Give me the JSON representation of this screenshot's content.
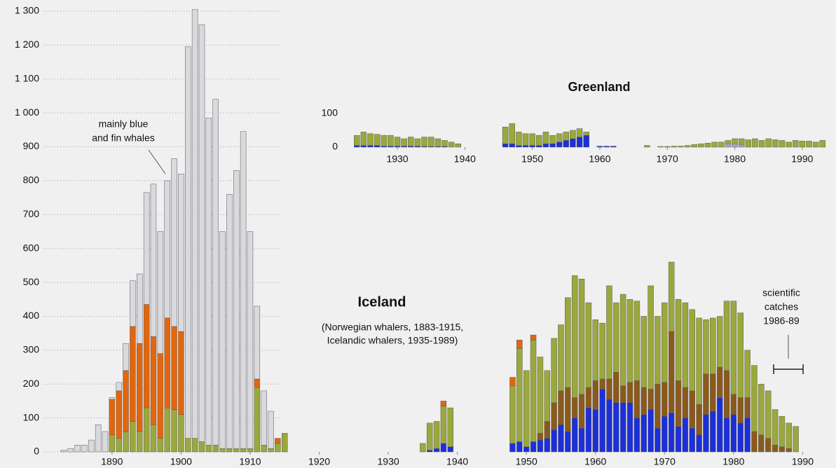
{
  "chart_data": [
    {
      "type": "bar",
      "stacked": true,
      "title": "Iceland",
      "annotations": [
        {
          "lines": [
            "mainly blue",
            "and fin whales"
          ]
        },
        {
          "lines": [
            "(Norwegian whalers, 1883-1915,",
            "Icelandic whalers, 1935-1989)"
          ]
        },
        {
          "lines": [
            "scientific",
            "catches",
            "1986-89"
          ]
        }
      ],
      "xlim": [
        1882,
        1993
      ],
      "xticks": [
        1890,
        1900,
        1910,
        1920,
        1930,
        1940,
        1950,
        1960,
        1970,
        1980,
        1990
      ],
      "ylim": [
        0,
        1300
      ],
      "yticks": [
        0,
        100,
        200,
        300,
        400,
        500,
        600,
        700,
        800,
        900,
        {
          "value": 1000,
          "label": "1 000"
        },
        {
          "value": 1100,
          "label": "1 100"
        },
        {
          "value": 1200,
          "label": "1 200"
        },
        {
          "value": 1300,
          "label": "1 300"
        }
      ],
      "grid": true,
      "x": [
        1883,
        1884,
        1885,
        1886,
        1887,
        1888,
        1889,
        1890,
        1891,
        1892,
        1893,
        1894,
        1895,
        1896,
        1897,
        1898,
        1899,
        1900,
        1901,
        1902,
        1903,
        1904,
        1905,
        1906,
        1907,
        1908,
        1909,
        1910,
        1911,
        1912,
        1913,
        1914,
        1915,
        1935,
        1936,
        1937,
        1938,
        1939,
        1948,
        1949,
        1950,
        1951,
        1952,
        1953,
        1954,
        1955,
        1956,
        1957,
        1958,
        1959,
        1960,
        1961,
        1962,
        1963,
        1964,
        1965,
        1966,
        1967,
        1968,
        1969,
        1970,
        1971,
        1972,
        1973,
        1974,
        1975,
        1976,
        1977,
        1978,
        1979,
        1980,
        1981,
        1982,
        1983,
        1984,
        1985,
        1986,
        1987,
        1988,
        1989
      ],
      "series": [
        {
          "color": "#1c2fd8",
          "values": [
            0,
            0,
            0,
            0,
            0,
            0,
            0,
            0,
            0,
            0,
            0,
            0,
            0,
            0,
            0,
            0,
            0,
            0,
            0,
            0,
            0,
            0,
            0,
            0,
            0,
            0,
            0,
            0,
            0,
            0,
            0,
            0,
            0,
            0,
            5,
            10,
            25,
            15,
            25,
            30,
            15,
            30,
            35,
            40,
            65,
            80,
            60,
            100,
            70,
            130,
            125,
            185,
            155,
            145,
            145,
            145,
            100,
            110,
            125,
            70,
            105,
            115,
            75,
            100,
            70,
            50,
            110,
            120,
            160,
            100,
            110,
            85,
            100,
            0,
            0,
            0,
            0,
            0,
            0,
            0
          ]
        },
        {
          "color": "#8a5a1c",
          "values": [
            0,
            0,
            0,
            0,
            0,
            0,
            0,
            0,
            0,
            0,
            0,
            0,
            0,
            0,
            0,
            0,
            0,
            0,
            0,
            0,
            0,
            0,
            0,
            0,
            0,
            0,
            0,
            0,
            0,
            0,
            0,
            0,
            0,
            0,
            0,
            0,
            0,
            0,
            0,
            0,
            0,
            0,
            20,
            50,
            80,
            100,
            130,
            60,
            100,
            60,
            85,
            30,
            60,
            90,
            50,
            60,
            110,
            80,
            60,
            130,
            100,
            240,
            135,
            90,
            110,
            90,
            120,
            110,
            90,
            140,
            60,
            75,
            60,
            60,
            50,
            40,
            20,
            15,
            10,
            0
          ]
        },
        {
          "color": "#9aa83c",
          "values": [
            0,
            0,
            0,
            0,
            0,
            0,
            0,
            50,
            40,
            60,
            90,
            60,
            130,
            80,
            40,
            130,
            125,
            110,
            40,
            40,
            30,
            20,
            20,
            10,
            10,
            10,
            10,
            10,
            190,
            20,
            10,
            25,
            55,
            25,
            80,
            80,
            110,
            115,
            170,
            275,
            225,
            300,
            225,
            150,
            190,
            195,
            265,
            360,
            340,
            250,
            180,
            165,
            275,
            205,
            270,
            245,
            235,
            210,
            305,
            200,
            235,
            205,
            240,
            250,
            240,
            255,
            160,
            165,
            150,
            205,
            275,
            250,
            140,
            195,
            150,
            140,
            105,
            90,
            75,
            75
          ]
        },
        {
          "color": "#e2660e",
          "values": [
            0,
            0,
            0,
            0,
            0,
            0,
            0,
            105,
            140,
            180,
            280,
            260,
            305,
            260,
            250,
            265,
            245,
            245,
            0,
            0,
            0,
            0,
            0,
            0,
            0,
            0,
            0,
            0,
            25,
            0,
            0,
            15,
            0,
            0,
            0,
            0,
            15,
            0,
            25,
            25,
            0,
            15,
            0,
            0,
            0,
            0,
            0,
            0,
            0,
            0,
            0,
            0,
            0,
            0,
            0,
            0,
            0,
            0,
            0,
            0,
            0,
            0,
            0,
            0,
            0,
            0,
            0,
            0,
            0,
            0,
            0,
            0,
            0,
            0,
            0,
            0,
            0,
            0,
            0,
            0
          ]
        },
        {
          "color": "#d9d9de",
          "values": [
            5,
            10,
            20,
            20,
            35,
            80,
            60,
            5,
            25,
            80,
            135,
            205,
            330,
            450,
            360,
            405,
            495,
            465,
            1155,
            1265,
            1230,
            965,
            1020,
            640,
            750,
            820,
            935,
            640,
            215,
            160,
            110,
            0,
            0,
            0,
            0,
            0,
            0,
            0,
            0,
            0,
            0,
            0,
            0,
            0,
            0,
            0,
            0,
            0,
            0,
            0,
            0,
            0,
            0,
            0,
            0,
            0,
            0,
            0,
            0,
            0,
            0,
            0,
            0,
            0,
            0,
            0,
            0,
            0,
            0,
            0,
            0,
            0,
            0,
            0,
            0,
            0,
            0,
            0,
            0,
            0
          ]
        }
      ]
    },
    {
      "type": "bar",
      "stacked": true,
      "title": "Greenland",
      "xlim": [
        1922,
        1995
      ],
      "xticks": [
        1930,
        1940,
        1950,
        1960,
        1970,
        1980,
        1990
      ],
      "ylim": [
        0,
        100
      ],
      "yticks": [
        0,
        100
      ],
      "x": [
        1924,
        1925,
        1926,
        1927,
        1928,
        1929,
        1930,
        1931,
        1932,
        1933,
        1934,
        1935,
        1936,
        1937,
        1938,
        1939,
        1946,
        1947,
        1948,
        1949,
        1950,
        1951,
        1952,
        1953,
        1954,
        1955,
        1956,
        1957,
        1958,
        1960,
        1961,
        1962,
        1967,
        1969,
        1970,
        1971,
        1972,
        1973,
        1974,
        1975,
        1976,
        1977,
        1978,
        1979,
        1980,
        1981,
        1982,
        1983,
        1984,
        1985,
        1986,
        1987,
        1988,
        1989,
        1990,
        1991,
        1992,
        1993
      ],
      "series": [
        {
          "color": "#1c2fd8",
          "values": [
            5,
            5,
            5,
            5,
            3,
            3,
            3,
            3,
            3,
            3,
            2,
            2,
            2,
            2,
            0,
            0,
            10,
            10,
            5,
            5,
            5,
            5,
            10,
            10,
            15,
            20,
            25,
            30,
            35,
            3,
            3,
            3,
            0,
            0,
            0,
            0,
            0,
            0,
            0,
            0,
            0,
            0,
            0,
            0,
            0,
            0,
            0,
            0,
            0,
            0,
            0,
            0,
            0,
            0,
            0,
            0,
            0,
            0
          ]
        },
        {
          "color": "#a8a8b4",
          "values": [
            0,
            0,
            0,
            0,
            0,
            0,
            0,
            0,
            0,
            0,
            0,
            0,
            0,
            0,
            0,
            0,
            0,
            0,
            0,
            0,
            0,
            0,
            0,
            0,
            0,
            0,
            0,
            0,
            0,
            0,
            0,
            0,
            0,
            0,
            0,
            0,
            0,
            0,
            0,
            0,
            0,
            0,
            0,
            10,
            10,
            8,
            0,
            0,
            0,
            0,
            0,
            0,
            0,
            0,
            0,
            0,
            0,
            0
          ]
        },
        {
          "color": "#9aa83c",
          "values": [
            30,
            40,
            35,
            33,
            32,
            32,
            27,
            22,
            27,
            22,
            28,
            28,
            23,
            18,
            15,
            10,
            50,
            60,
            40,
            35,
            35,
            30,
            35,
            25,
            25,
            25,
            25,
            25,
            10,
            0,
            0,
            0,
            5,
            2,
            2,
            3,
            3,
            5,
            8,
            10,
            12,
            15,
            15,
            10,
            15,
            17,
            22,
            25,
            20,
            25,
            22,
            20,
            15,
            20,
            18,
            18,
            15,
            20
          ]
        }
      ]
    }
  ]
}
